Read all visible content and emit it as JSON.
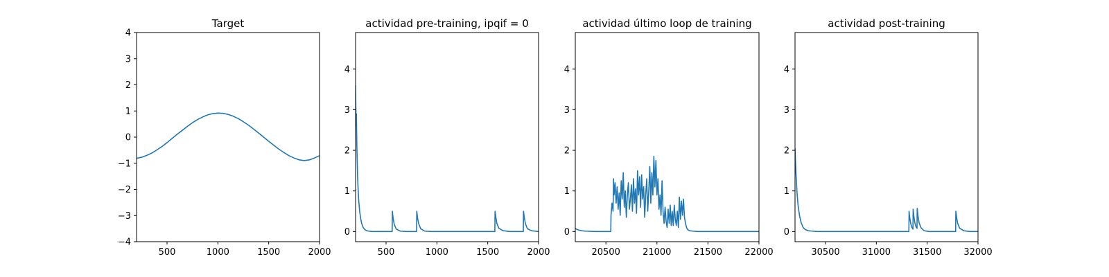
{
  "colors": {
    "series": "#1f77b4"
  },
  "chart_data": [
    {
      "type": "line",
      "title": "Target",
      "xlim": [
        200,
        2000
      ],
      "ylim": [
        -4,
        4
      ],
      "xticks": [
        500,
        1000,
        1500,
        2000
      ],
      "xtick_labels": [
        "500",
        "1000",
        "1500",
        "2000"
      ],
      "yticks": [
        -4,
        -3,
        -2,
        -1,
        0,
        1,
        2,
        3,
        4
      ],
      "ytick_labels": [
        "−4",
        "−3",
        "−2",
        "−1",
        "0",
        "1",
        "2",
        "3",
        "4"
      ],
      "series": [
        {
          "x": [
            200,
            250,
            300,
            350,
            400,
            450,
            500,
            550,
            600,
            650,
            700,
            750,
            800,
            850,
            900,
            950,
            1000,
            1050,
            1100,
            1150,
            1200,
            1250,
            1300,
            1350,
            1400,
            1450,
            1500,
            1550,
            1600,
            1650,
            1700,
            1750,
            1800,
            1850,
            1900,
            1950,
            2000
          ],
          "y": [
            -0.81,
            -0.77,
            -0.7,
            -0.61,
            -0.49,
            -0.36,
            -0.21,
            -0.05,
            0.11,
            0.26,
            0.41,
            0.55,
            0.67,
            0.77,
            0.85,
            0.9,
            0.92,
            0.91,
            0.87,
            0.8,
            0.71,
            0.59,
            0.46,
            0.31,
            0.16,
            0.0,
            -0.16,
            -0.31,
            -0.46,
            -0.59,
            -0.71,
            -0.8,
            -0.87,
            -0.9,
            -0.87,
            -0.8,
            -0.71
          ]
        }
      ]
    },
    {
      "type": "line",
      "title": "actividad pre-training, ipqif = 0",
      "xlim": [
        200,
        2000
      ],
      "ylim": [
        -0.25,
        4.9
      ],
      "xticks": [
        500,
        1000,
        1500,
        2000
      ],
      "xtick_labels": [
        "500",
        "1000",
        "1500",
        "2000"
      ],
      "yticks": [
        0,
        1,
        2,
        3,
        4
      ],
      "ytick_labels": [
        "0",
        "1",
        "2",
        "3",
        "4"
      ],
      "series": [
        {
          "x": [
            200,
            202,
            205,
            208,
            210,
            212,
            215,
            218,
            220,
            225,
            230,
            240,
            250,
            260,
            275,
            290,
            310,
            330,
            360,
            400,
            450,
            500,
            560,
            562,
            565,
            570,
            580,
            600,
            640,
            700,
            800,
            802,
            805,
            810,
            820,
            840,
            880,
            950,
            1100,
            1300,
            1500,
            1570,
            1572,
            1575,
            1580,
            1590,
            1610,
            1650,
            1720,
            1850,
            1852,
            1855,
            1860,
            1870,
            1890,
            1930,
            2000
          ],
          "y": [
            3.6,
            3.2,
            2.6,
            2.9,
            2.55,
            2.2,
            1.85,
            1.55,
            1.35,
            1.05,
            0.8,
            0.5,
            0.32,
            0.2,
            0.1,
            0.05,
            0.02,
            0.01,
            0,
            0,
            0,
            0,
            0,
            0.5,
            0.42,
            0.32,
            0.18,
            0.06,
            0.01,
            0,
            0,
            0.5,
            0.44,
            0.33,
            0.2,
            0.07,
            0.01,
            0,
            0,
            0,
            0,
            0,
            0.5,
            0.44,
            0.35,
            0.2,
            0.08,
            0.02,
            0,
            0,
            0.5,
            0.44,
            0.34,
            0.2,
            0.07,
            0.02,
            0
          ]
        }
      ]
    },
    {
      "type": "line",
      "title": "actividad último loop de training",
      "xlim": [
        20200,
        22000
      ],
      "ylim": [
        -0.25,
        4.9
      ],
      "xticks": [
        20500,
        21000,
        21500,
        22000
      ],
      "xtick_labels": [
        "20500",
        "21000",
        "21500",
        "22000"
      ],
      "yticks": [
        0,
        1,
        2,
        3,
        4
      ],
      "ytick_labels": [
        "0",
        "1",
        "2",
        "3",
        "4"
      ],
      "series": [
        {
          "x": [
            20200,
            20210,
            20230,
            20260,
            20300,
            20400,
            20500,
            20548,
            20550,
            20560,
            20570,
            20575,
            20580,
            20590,
            20600,
            20610,
            20620,
            20630,
            20640,
            20650,
            20660,
            20670,
            20680,
            20690,
            20700,
            20710,
            20720,
            20730,
            20740,
            20750,
            20760,
            20770,
            20780,
            20790,
            20800,
            20810,
            20820,
            20830,
            20840,
            20850,
            20860,
            20870,
            20880,
            20890,
            20900,
            20910,
            20920,
            20930,
            20940,
            20950,
            20960,
            20970,
            20980,
            20990,
            21000,
            21010,
            21020,
            21030,
            21040,
            21050,
            21060,
            21070,
            21080,
            21090,
            21100,
            21110,
            21120,
            21130,
            21140,
            21150,
            21160,
            21170,
            21180,
            21190,
            21200,
            21210,
            21220,
            21230,
            21240,
            21250,
            21260,
            21270,
            21280,
            21290,
            21300,
            21320,
            21350,
            21400,
            21500,
            21700,
            22000
          ],
          "y": [
            0.08,
            0.06,
            0.04,
            0.02,
            0.01,
            0,
            0,
            0,
            0.4,
            0.7,
            0.5,
            1.3,
            0.9,
            1.2,
            0.7,
            1.1,
            0.55,
            0.95,
            0.4,
            1.25,
            0.8,
            1.45,
            0.6,
            1.0,
            0.35,
            0.9,
            1.2,
            0.55,
            0.8,
            1.15,
            0.5,
            1.3,
            0.7,
            1.05,
            0.45,
            1.5,
            0.9,
            1.35,
            0.6,
            1.4,
            0.8,
            1.1,
            0.35,
            0.9,
            1.3,
            0.5,
            1.0,
            1.6,
            0.7,
            1.45,
            0.9,
            1.85,
            1.1,
            1.75,
            0.9,
            1.3,
            0.55,
            0.9,
            0.4,
            1.25,
            0.5,
            0.2,
            0.6,
            0.25,
            0.1,
            0.55,
            0.2,
            0.65,
            0.15,
            0.5,
            0.15,
            0.65,
            0.3,
            0.15,
            0.5,
            0.1,
            0.85,
            0.3,
            0.75,
            0.4,
            0.8,
            0.35,
            0.2,
            0.1,
            0.05,
            0.02,
            0.01,
            0,
            0,
            0,
            0
          ]
        }
      ]
    },
    {
      "type": "line",
      "title": "actividad post-training",
      "xlim": [
        30200,
        32000
      ],
      "ylim": [
        -0.25,
        4.9
      ],
      "xticks": [
        30500,
        31000,
        31500,
        32000
      ],
      "xtick_labels": [
        "30500",
        "31000",
        "31500",
        "32000"
      ],
      "yticks": [
        0,
        1,
        2,
        3,
        4
      ],
      "ytick_labels": [
        "0",
        "1",
        "2",
        "3",
        "4"
      ],
      "series": [
        {
          "x": [
            30200,
            30205,
            30210,
            30220,
            30230,
            30245,
            30260,
            30280,
            30300,
            30330,
            30370,
            30420,
            30500,
            30800,
            31100,
            31320,
            31322,
            31325,
            31330,
            31340,
            31350,
            31360,
            31362,
            31365,
            31370,
            31380,
            31390,
            31400,
            31402,
            31405,
            31410,
            31420,
            31440,
            31470,
            31520,
            31600,
            31700,
            31780,
            31782,
            31785,
            31790,
            31800,
            31820,
            31860,
            31920,
            32000
          ],
          "y": [
            2.05,
            1.7,
            1.4,
            0.95,
            0.65,
            0.38,
            0.22,
            0.1,
            0.05,
            0.02,
            0.01,
            0,
            0,
            0,
            0,
            0,
            0.5,
            0.42,
            0.32,
            0.18,
            0.1,
            0.06,
            0.55,
            0.47,
            0.36,
            0.2,
            0.12,
            0.08,
            0.57,
            0.5,
            0.38,
            0.22,
            0.09,
            0.02,
            0,
            0,
            0,
            0,
            0.5,
            0.44,
            0.34,
            0.2,
            0.08,
            0.02,
            0,
            0
          ]
        }
      ]
    }
  ]
}
